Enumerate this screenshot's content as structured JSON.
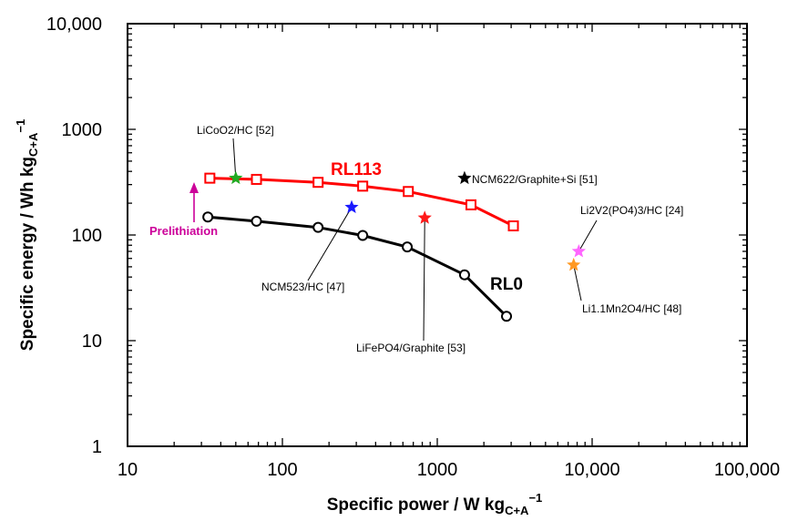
{
  "chart_data": {
    "type": "scatter",
    "xlabel": "Specific power / W kg",
    "xlabel_sub": "C+A",
    "xlabel_sup": "−1",
    "ylabel": "Specific energy / Wh kg",
    "ylabel_sub": "C+A",
    "ylabel_sup": "−1",
    "x_scale": "log",
    "y_scale": "log",
    "xlim": [
      10,
      100000
    ],
    "ylim": [
      1,
      10000
    ],
    "x_ticks": [
      {
        "value": 10,
        "label": "10"
      },
      {
        "value": 100,
        "label": "100"
      },
      {
        "value": 1000,
        "label": "1000"
      },
      {
        "value": 10000,
        "label": "10,000"
      },
      {
        "value": 100000,
        "label": "100,000"
      }
    ],
    "y_ticks": [
      {
        "value": 1,
        "label": "1"
      },
      {
        "value": 10,
        "label": "10"
      },
      {
        "value": 100,
        "label": "100"
      },
      {
        "value": 1000,
        "label": "1000"
      },
      {
        "value": 10000,
        "label": "10,000"
      }
    ],
    "grid": false,
    "series": [
      {
        "name": "RL113",
        "color": "#ff0000",
        "marker": "open-square",
        "points": [
          [
            34,
            345
          ],
          [
            68,
            336
          ],
          [
            170,
            315
          ],
          [
            330,
            290
          ],
          [
            650,
            258
          ],
          [
            1650,
            193
          ],
          [
            3100,
            122
          ]
        ]
      },
      {
        "name": "RL0",
        "color": "#000000",
        "marker": "open-circle",
        "points": [
          [
            33,
            148
          ],
          [
            68,
            135
          ],
          [
            170,
            118
          ],
          [
            330,
            99
          ],
          [
            640,
            77
          ],
          [
            1500,
            42
          ],
          [
            2800,
            17
          ]
        ]
      }
    ],
    "references": [
      {
        "label": "LiCoO2/HC [52]",
        "x": 50,
        "y": 345,
        "color": "#22aa22"
      },
      {
        "label": "NCM622/Graphite+Si [51]",
        "x": 1500,
        "y": 345,
        "color": "#000000"
      },
      {
        "label": "NCM523/HC [47]",
        "x": 280,
        "y": 183,
        "color": "#1a1aff"
      },
      {
        "label": "LiFePO4/Graphite [53]",
        "x": 830,
        "y": 145,
        "color": "#ff1a1a"
      },
      {
        "label": "Li2V2(PO4)3/HC [24]",
        "x": 8200,
        "y": 70,
        "color": "#ff66ff"
      },
      {
        "label": "Li1.1Mn2O4/HC [48]",
        "x": 7600,
        "y": 52,
        "color": "#ff9922"
      }
    ],
    "annotation": {
      "label": "Prelithiation",
      "color": "#cc0099"
    }
  }
}
